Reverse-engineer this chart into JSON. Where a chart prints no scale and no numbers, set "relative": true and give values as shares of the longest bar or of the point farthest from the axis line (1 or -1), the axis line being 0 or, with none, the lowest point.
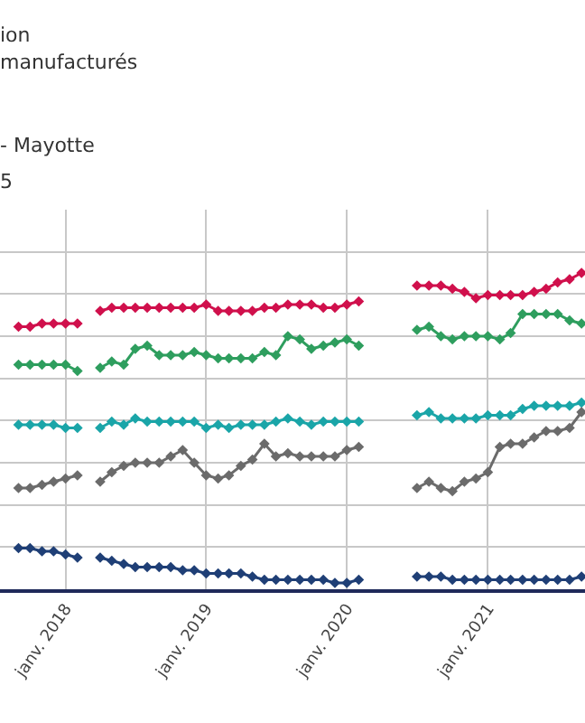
{
  "chart_data": {
    "type": "line",
    "relative": true,
    "grid": true,
    "marker": "diamond",
    "line_style": "solid",
    "annotations": [
      "ion",
      "manufacturés",
      "- Mayotte",
      "5"
    ],
    "x": [
      "2017-09",
      "2017-10",
      "2017-11",
      "2017-12",
      "2018-01",
      "2018-02",
      "2018-03",
      "2018-04",
      "2018-05",
      "2018-06",
      "2018-07",
      "2018-08",
      "2018-09",
      "2018-10",
      "2018-11",
      "2018-12",
      "2019-01",
      "2019-02",
      "2019-03",
      "2019-04",
      "2019-05",
      "2019-06",
      "2019-07",
      "2019-08",
      "2019-09",
      "2019-10",
      "2019-11",
      "2019-12",
      "2020-01",
      "2020-02",
      "2020-03",
      "2020-04",
      "2020-05",
      "2020-06",
      "2020-07",
      "2020-08",
      "2020-09",
      "2020-10",
      "2020-11",
      "2020-12",
      "2021-01",
      "2021-02",
      "2021-03",
      "2021-04",
      "2021-05",
      "2021-06",
      "2021-07",
      "2021-08",
      "2021-09"
    ],
    "xlim": [
      "2017-07-15",
      "2021-09-10"
    ],
    "xticks": [
      {
        "value": "2018-01",
        "label": "janv. 2018"
      },
      {
        "value": "2019-01",
        "label": "janv. 2019"
      },
      {
        "value": "2020-01",
        "label": "janv. 2020"
      },
      {
        "value": "2021-01",
        "label": "janv. 2021"
      }
    ],
    "series": [
      {
        "color": "#d0104c",
        "values": [
          0.83,
          0.83,
          0.84,
          0.84,
          0.84,
          0.84,
          null,
          0.88,
          0.89,
          0.89,
          0.89,
          0.89,
          0.89,
          0.89,
          0.89,
          0.89,
          0.9,
          0.88,
          0.88,
          0.88,
          0.88,
          0.89,
          0.89,
          0.9,
          0.9,
          0.9,
          0.89,
          0.89,
          0.9,
          0.91,
          null,
          null,
          null,
          null,
          0.96,
          0.96,
          0.96,
          0.95,
          0.94,
          0.92,
          0.93,
          0.93,
          0.93,
          0.93,
          0.94,
          0.95,
          0.97,
          0.98,
          1.0
        ]
      },
      {
        "color": "#2e9e5e",
        "values": [
          0.71,
          0.71,
          0.71,
          0.71,
          0.71,
          0.69,
          null,
          0.7,
          0.72,
          0.71,
          0.76,
          0.77,
          0.74,
          0.74,
          0.74,
          0.75,
          0.74,
          0.73,
          0.73,
          0.73,
          0.73,
          0.75,
          0.74,
          0.8,
          0.79,
          0.76,
          0.77,
          0.78,
          0.79,
          0.77,
          null,
          null,
          null,
          null,
          0.82,
          0.83,
          0.8,
          0.79,
          0.8,
          0.8,
          0.8,
          0.79,
          0.81,
          0.87,
          0.87,
          0.87,
          0.87,
          0.85,
          0.84
        ]
      },
      {
        "color": "#1aa5a8",
        "values": [
          0.52,
          0.52,
          0.52,
          0.52,
          0.51,
          0.51,
          null,
          0.51,
          0.53,
          0.52,
          0.54,
          0.53,
          0.53,
          0.53,
          0.53,
          0.53,
          0.51,
          0.52,
          0.51,
          0.52,
          0.52,
          0.52,
          0.53,
          0.54,
          0.53,
          0.52,
          0.53,
          0.53,
          0.53,
          0.53,
          null,
          null,
          null,
          null,
          0.55,
          0.56,
          0.54,
          0.54,
          0.54,
          0.54,
          0.55,
          0.55,
          0.55,
          0.57,
          0.58,
          0.58,
          0.58,
          0.58,
          0.59
        ]
      },
      {
        "color": "#6b6b6b",
        "values": [
          0.32,
          0.32,
          0.33,
          0.34,
          0.35,
          0.36,
          null,
          0.34,
          0.37,
          0.39,
          0.4,
          0.4,
          0.4,
          0.42,
          0.44,
          0.4,
          0.36,
          0.35,
          0.36,
          0.39,
          0.41,
          0.46,
          0.42,
          0.43,
          0.42,
          0.42,
          0.42,
          0.42,
          0.44,
          0.45,
          null,
          null,
          null,
          null,
          0.32,
          0.34,
          0.32,
          0.31,
          0.34,
          0.35,
          0.37,
          0.45,
          0.46,
          0.46,
          0.48,
          0.5,
          0.5,
          0.51,
          0.56
        ]
      },
      {
        "color": "#1f3f76",
        "values": [
          0.13,
          0.13,
          0.12,
          0.12,
          0.11,
          0.1,
          null,
          0.1,
          0.09,
          0.08,
          0.07,
          0.07,
          0.07,
          0.07,
          0.06,
          0.06,
          0.05,
          0.05,
          0.05,
          0.05,
          0.04,
          0.03,
          0.03,
          0.03,
          0.03,
          0.03,
          0.03,
          0.02,
          0.02,
          0.03,
          null,
          null,
          null,
          null,
          0.04,
          0.04,
          0.04,
          0.03,
          0.03,
          0.03,
          0.03,
          0.03,
          0.03,
          0.03,
          0.03,
          0.03,
          0.03,
          0.03,
          0.04
        ]
      }
    ]
  }
}
